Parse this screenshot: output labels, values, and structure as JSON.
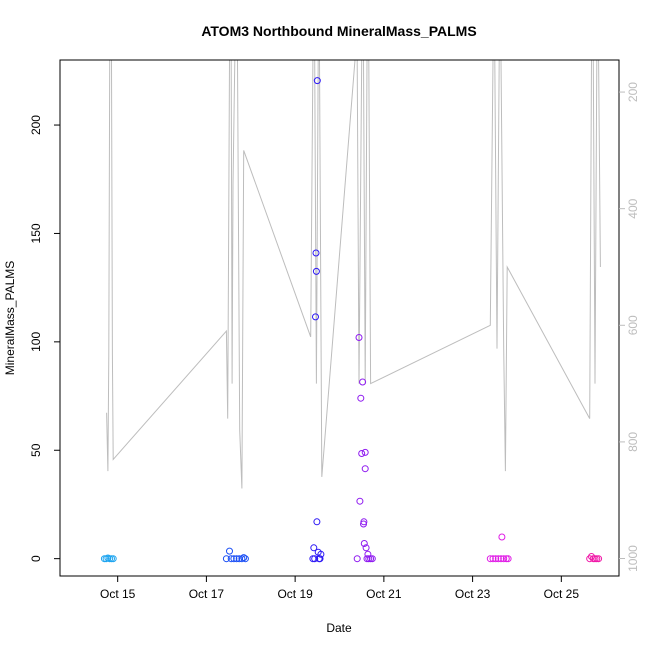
{
  "chart_data": {
    "type": "scatter",
    "title": "ATOM3 Northbound MineralMass_PALMS",
    "xlabel": "Date",
    "ylabel": "MineralMass_PALMS",
    "x_tick_labels": [
      "Oct 15",
      "Oct 17",
      "Oct 19",
      "Oct 21",
      "Oct 23",
      "Oct 25"
    ],
    "x_tick_days": [
      15,
      17,
      19,
      21,
      23,
      25
    ],
    "xlim_days": [
      13.7,
      26.3
    ],
    "y_ticks": [
      0,
      50,
      100,
      150,
      200
    ],
    "ylim": [
      -8,
      230
    ],
    "y2_ticks": [
      200,
      400,
      600,
      800,
      1000
    ],
    "y2lim": [
      1030,
      145
    ],
    "colors": {
      "line": "#bdbdbd",
      "axis": "#000000",
      "right_axis": "#bdbdbd"
    },
    "series": [
      {
        "color": "#1fa5f0",
        "points": [
          [
            14.7,
            0
          ],
          [
            14.74,
            0
          ],
          [
            14.78,
            0.3
          ],
          [
            14.82,
            0
          ],
          [
            14.86,
            0
          ],
          [
            14.9,
            0
          ]
        ]
      },
      {
        "color": "#1b4ff5",
        "points": [
          [
            17.45,
            0
          ],
          [
            17.52,
            3.5
          ],
          [
            17.56,
            0
          ],
          [
            17.62,
            0
          ],
          [
            17.68,
            0
          ],
          [
            17.74,
            0
          ],
          [
            17.8,
            0
          ],
          [
            17.84,
            0.5
          ],
          [
            17.88,
            0
          ]
        ]
      },
      {
        "color": "#2d19f5",
        "points": [
          [
            19.4,
            0
          ],
          [
            19.42,
            5
          ],
          [
            19.44,
            0
          ],
          [
            19.46,
            111.5
          ],
          [
            19.47,
            141
          ],
          [
            19.48,
            132.5
          ],
          [
            19.49,
            17
          ],
          [
            19.5,
            220.5
          ],
          [
            19.52,
            3
          ],
          [
            19.54,
            0
          ],
          [
            19.56,
            0
          ],
          [
            19.58,
            2
          ]
        ]
      },
      {
        "color": "#8f1bf0",
        "points": [
          [
            20.4,
            0
          ],
          [
            20.44,
            102
          ],
          [
            20.46,
            26.5
          ],
          [
            20.48,
            74
          ],
          [
            20.5,
            48.5
          ],
          [
            20.52,
            81.5
          ],
          [
            20.54,
            16
          ],
          [
            20.55,
            17
          ],
          [
            20.56,
            7
          ],
          [
            20.58,
            41.5
          ],
          [
            20.58,
            49
          ],
          [
            20.6,
            5
          ],
          [
            20.62,
            0
          ],
          [
            20.64,
            2
          ],
          [
            20.66,
            0
          ],
          [
            20.7,
            0
          ],
          [
            20.74,
            0
          ]
        ]
      },
      {
        "color": "#e01ce6",
        "points": [
          [
            23.4,
            0
          ],
          [
            23.46,
            0
          ],
          [
            23.52,
            0
          ],
          [
            23.58,
            0
          ],
          [
            23.64,
            0
          ],
          [
            23.66,
            10
          ],
          [
            23.7,
            0
          ],
          [
            23.76,
            0
          ],
          [
            23.8,
            0
          ]
        ]
      },
      {
        "color": "#f01aa8",
        "points": [
          [
            25.64,
            0
          ],
          [
            25.68,
            1
          ],
          [
            25.72,
            0
          ],
          [
            25.76,
            0
          ],
          [
            25.8,
            0
          ],
          [
            25.84,
            0
          ]
        ]
      }
    ],
    "altitude_line": {
      "y2_values_note": "gray line plotted against right axis (altitude, hPa-like, inverted)",
      "points": [
        [
          14.75,
          750
        ],
        [
          14.78,
          850
        ],
        [
          14.8,
          650
        ],
        [
          14.82,
          145
        ],
        [
          14.86,
          145
        ],
        [
          14.88,
          650
        ],
        [
          14.9,
          830
        ],
        [
          17.45,
          610
        ],
        [
          17.48,
          760
        ],
        [
          17.5,
          460
        ],
        [
          17.52,
          145
        ],
        [
          17.56,
          145
        ],
        [
          17.58,
          700
        ],
        [
          17.6,
          360
        ],
        [
          17.64,
          145
        ],
        [
          17.7,
          145
        ],
        [
          17.75,
          780
        ],
        [
          17.8,
          880
        ],
        [
          17.84,
          300
        ],
        [
          19.35,
          620
        ],
        [
          19.4,
          145
        ],
        [
          19.44,
          145
        ],
        [
          19.48,
          700
        ],
        [
          19.52,
          145
        ],
        [
          19.55,
          145
        ],
        [
          19.6,
          860
        ],
        [
          20.35,
          145
        ],
        [
          20.4,
          145
        ],
        [
          20.44,
          700
        ],
        [
          20.5,
          145
        ],
        [
          20.54,
          145
        ],
        [
          20.58,
          700
        ],
        [
          20.62,
          145
        ],
        [
          20.66,
          145
        ],
        [
          20.7,
          700
        ],
        [
          23.4,
          600
        ],
        [
          23.46,
          145
        ],
        [
          23.5,
          145
        ],
        [
          23.55,
          640
        ],
        [
          23.6,
          145
        ],
        [
          23.64,
          145
        ],
        [
          23.7,
          640
        ],
        [
          23.74,
          850
        ],
        [
          23.78,
          500
        ],
        [
          25.64,
          760
        ],
        [
          25.68,
          145
        ],
        [
          25.72,
          145
        ],
        [
          25.76,
          700
        ],
        [
          25.8,
          145
        ],
        [
          25.84,
          145
        ],
        [
          25.88,
          500
        ]
      ]
    }
  }
}
